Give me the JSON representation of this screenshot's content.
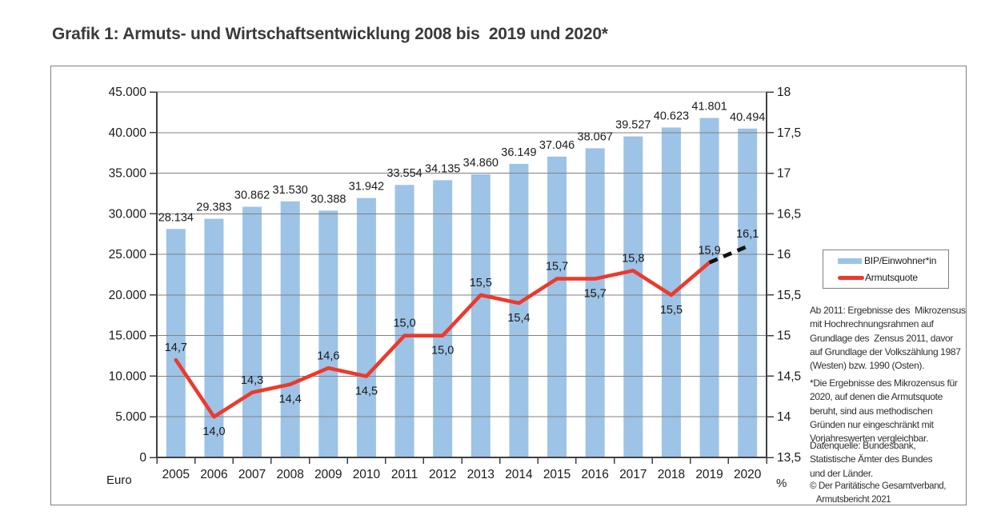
{
  "page": {
    "title": "Grafik 1: Armuts- und Wirtschaftsentwicklung 2008 bis  2019 und 2020*"
  },
  "chart_data": {
    "type": "combo-bar-line",
    "categories": [
      "2005",
      "2006",
      "2007",
      "2008",
      "2009",
      "2010",
      "2011",
      "2012",
      "2013",
      "2014",
      "2015",
      "2016",
      "2017",
      "2018",
      "2019",
      "2020"
    ],
    "series": [
      {
        "name": "BIP/Einwohner*in",
        "type": "bar",
        "axis": "left",
        "color": "#9dc3e6",
        "values": [
          28134,
          29383,
          30862,
          31530,
          30388,
          31942,
          33554,
          34135,
          34860,
          36149,
          37046,
          38067,
          39527,
          40623,
          41801,
          40494
        ],
        "labels": [
          "28.134",
          "29.383",
          "30.862",
          "31.530",
          "30.388",
          "31.942",
          "33.554",
          "34.135",
          "34.860",
          "36.149",
          "37.046",
          "38.067",
          "39.527",
          "40.623",
          "41.801",
          "40.494"
        ]
      },
      {
        "name": "Armutsquote",
        "type": "line",
        "axis": "right",
        "color": "#ed392b",
        "dashed_last_segment_color": "#111111",
        "values": [
          14.7,
          14.0,
          14.3,
          14.4,
          14.6,
          14.5,
          15.0,
          15.0,
          15.5,
          15.4,
          15.7,
          15.7,
          15.8,
          15.5,
          15.9,
          16.1
        ],
        "labels": [
          "14,7",
          "14,0",
          "14,3",
          "14,4",
          "14,6",
          "14,5",
          "15,0",
          "15,0",
          "15,5",
          "15,4",
          "15,7",
          "15,7",
          "15,8",
          "15,5",
          "15,9",
          "16,1"
        ],
        "label_positions": [
          "above",
          "below",
          "above",
          "below",
          "above",
          "below",
          "above",
          "below",
          "above",
          "below",
          "above",
          "below",
          "above",
          "below",
          "above",
          "above"
        ]
      }
    ],
    "left_axis": {
      "title": "Euro",
      "min": 0,
      "max": 45000,
      "step": 5000,
      "tick_labels": [
        "0",
        "5.000",
        "10.000",
        "15.000",
        "20.000",
        "25.000",
        "30.000",
        "35.000",
        "40.000",
        "45.000"
      ]
    },
    "right_axis": {
      "title": "%",
      "min": 13.5,
      "max": 18,
      "step": 0.5,
      "tick_labels": [
        "13,5",
        "14",
        "14,5",
        "15",
        "15,5",
        "16",
        "16,5",
        "17",
        "17,5",
        "18"
      ]
    },
    "grid": true,
    "legend": {
      "position": "right"
    }
  },
  "notes": {
    "note1": "Ab 2011: Ergebnisse des  Mikrozensus\nmit Hochrechnungsrahmen auf\nGrundlage des  Zensus 2011, davor\nauf Grundlage der Volkszählung 1987\n(Westen) bzw. 1990 (Osten).",
    "note2": "*Die Ergebnisse des Mikrozensus für\n2020, auf denen die Armutsquote\nberuht, sind aus methodischen\nGründen nur eingeschränkt mit\nVorjahreswerten vergleichbar.",
    "source": "Datenquelle: Bundesbank,\nStatistische Ämter des Bundes\nund der Länder.",
    "copyright": "© Der Paritätische Gesamtverband,\n   Armutsbericht 2021"
  }
}
